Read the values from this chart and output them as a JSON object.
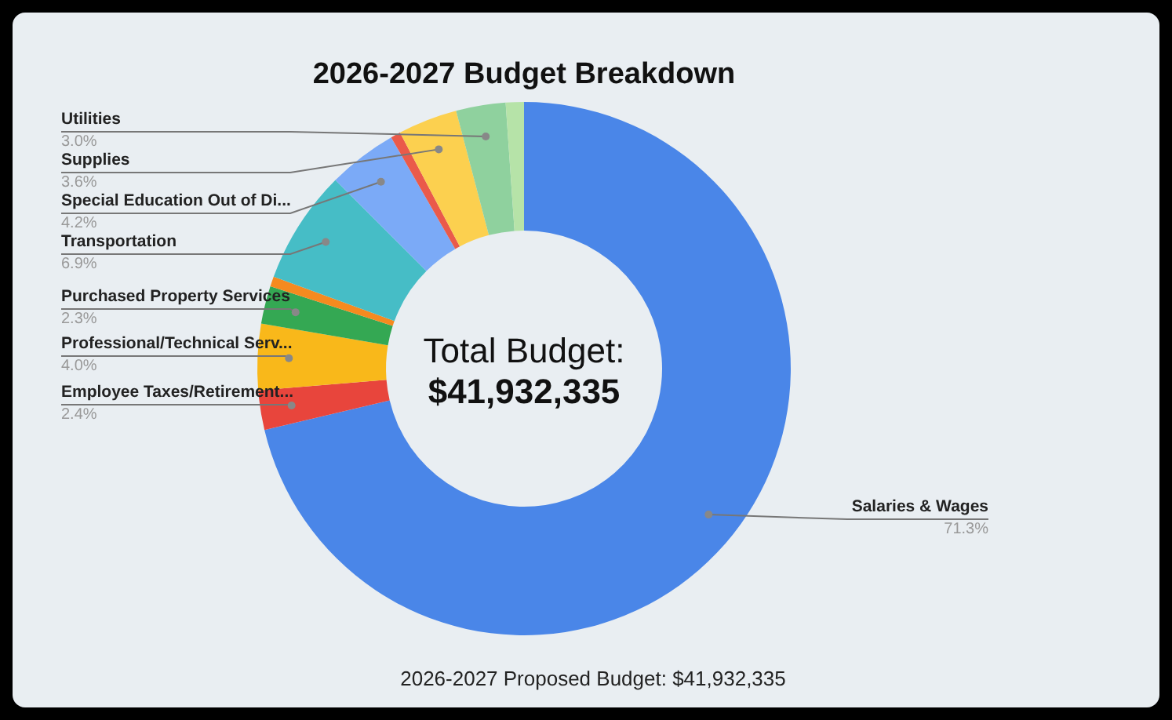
{
  "chart_data": {
    "type": "donut",
    "title": "2026-2027 Budget Breakdown",
    "categories": [
      "Salaries & Wages",
      "Employee Taxes/Retirement...",
      "Professional/Technical Serv...",
      "Purchased Property Services",
      null,
      "Transportation",
      "Special Education Out of Di...",
      null,
      "Supplies",
      "Utilities",
      null
    ],
    "values": [
      71.3,
      2.4,
      4.0,
      2.3,
      0.6,
      6.9,
      4.2,
      0.6,
      3.6,
      3.0,
      1.1
    ],
    "colors": [
      "#4a86e8",
      "#e8453c",
      "#f9b81a",
      "#34a853",
      "#f58a1f",
      "#46bdc6",
      "#7baaf7",
      "#ea5a4a",
      "#fcd04f",
      "#8fd19e",
      "#b6e3a8"
    ],
    "value_labels": [
      "71.3%",
      "2.4%",
      "4.0%",
      "2.3%",
      null,
      "6.9%",
      "4.2%",
      null,
      "3.6%",
      "3.0%",
      null
    ],
    "annotations": [
      "Total Budget:",
      "$41,932,335",
      "2026-2027 Proposed Budget:  $41,932,335"
    ]
  }
}
